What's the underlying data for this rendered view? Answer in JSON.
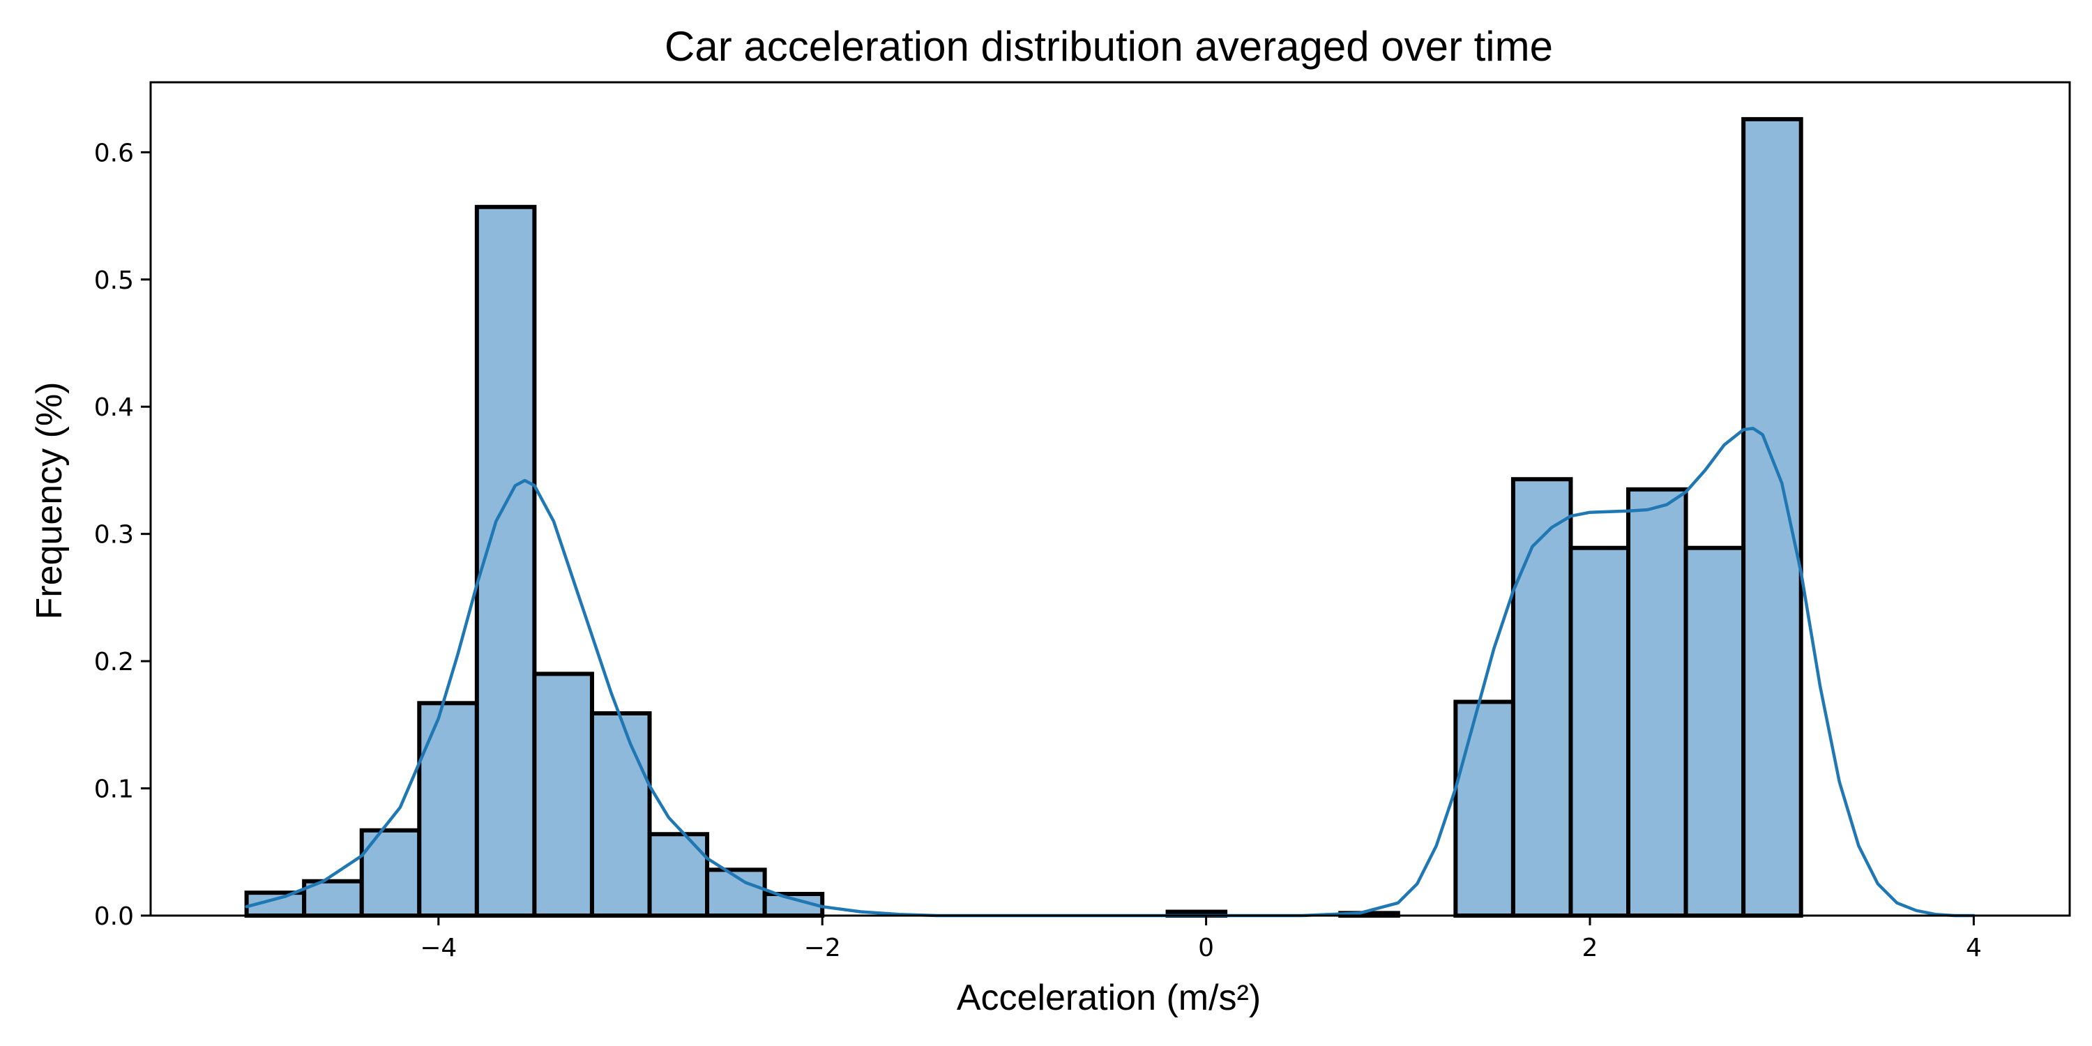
{
  "chart_data": {
    "type": "bar",
    "title": "Car acceleration distribution averaged over time",
    "xlabel": "Acceleration (m/s²)",
    "ylabel": "Frequency (%)",
    "xlim": [
      -5.5,
      4.5
    ],
    "ylim": [
      0,
      0.655
    ],
    "xticks": [
      -4,
      -2,
      0,
      2,
      4
    ],
    "xtick_labels": [
      "−4",
      "−2",
      "0",
      "2",
      "4"
    ],
    "yticks": [
      0.0,
      0.1,
      0.2,
      0.3,
      0.4,
      0.5,
      0.6
    ],
    "ytick_labels": [
      "0.0",
      "0.1",
      "0.2",
      "0.3",
      "0.4",
      "0.5",
      "0.6"
    ],
    "grid": false,
    "colors": {
      "bar_fill": "#8fb9da",
      "bar_edge": "#000000",
      "kde_line": "#1f77b4"
    },
    "histogram": {
      "bin_edges": [
        -5.0,
        -4.7,
        -4.4,
        -4.1,
        -3.8,
        -3.5,
        -3.2,
        -2.9,
        -2.6,
        -2.3,
        -2.0,
        -1.7,
        -1.4,
        -1.1,
        -0.8,
        -0.5,
        -0.2,
        0.1,
        0.4,
        0.7,
        1.0,
        1.3,
        1.6,
        1.9,
        2.2,
        2.5,
        2.8,
        3.1,
        3.4,
        3.7,
        4.0
      ],
      "values": [
        0.018,
        0.027,
        0.067,
        0.167,
        0.557,
        0.19,
        0.159,
        0.064,
        0.036,
        0.017,
        0,
        0,
        0,
        0,
        0,
        0,
        0.003,
        0,
        0,
        0.002,
        0,
        0.168,
        0.343,
        0.289,
        0.335,
        0.289,
        0.626,
        0,
        0,
        0
      ]
    },
    "kde": {
      "x": [
        -5.0,
        -4.8,
        -4.6,
        -4.4,
        -4.2,
        -4.0,
        -3.9,
        -3.8,
        -3.7,
        -3.6,
        -3.55,
        -3.5,
        -3.4,
        -3.3,
        -3.2,
        -3.1,
        -3.0,
        -2.9,
        -2.8,
        -2.6,
        -2.4,
        -2.2,
        -2.0,
        -1.8,
        -1.6,
        -1.4,
        -1.0,
        0.0,
        0.5,
        0.8,
        1.0,
        1.1,
        1.2,
        1.3,
        1.4,
        1.5,
        1.6,
        1.7,
        1.8,
        1.9,
        2.0,
        2.2,
        2.3,
        2.4,
        2.5,
        2.6,
        2.7,
        2.8,
        2.85,
        2.9,
        3.0,
        3.1,
        3.2,
        3.3,
        3.4,
        3.5,
        3.6,
        3.7,
        3.8,
        3.9,
        4.0
      ],
      "y": [
        0.007,
        0.015,
        0.027,
        0.047,
        0.085,
        0.155,
        0.205,
        0.26,
        0.31,
        0.338,
        0.342,
        0.338,
        0.31,
        0.265,
        0.22,
        0.175,
        0.135,
        0.102,
        0.077,
        0.045,
        0.026,
        0.015,
        0.007,
        0.003,
        0.001,
        0.0,
        0.0,
        0.0,
        0.0,
        0.002,
        0.01,
        0.025,
        0.055,
        0.1,
        0.155,
        0.21,
        0.255,
        0.29,
        0.305,
        0.314,
        0.317,
        0.318,
        0.319,
        0.323,
        0.333,
        0.35,
        0.37,
        0.382,
        0.383,
        0.378,
        0.34,
        0.27,
        0.18,
        0.105,
        0.055,
        0.025,
        0.01,
        0.004,
        0.001,
        0.0,
        0.0
      ]
    }
  }
}
